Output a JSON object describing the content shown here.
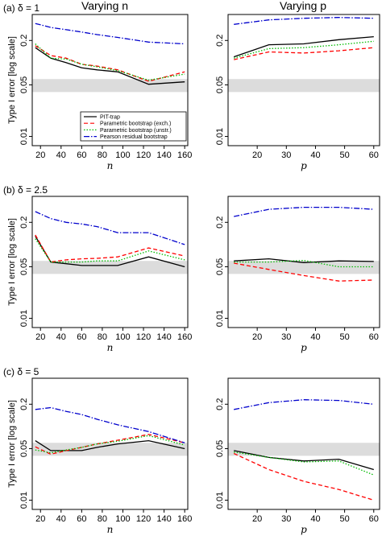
{
  "figure": {
    "col_titles": [
      "Varying n",
      "Varying p"
    ],
    "row_labels": [
      "(a)  δ = 1",
      "(b)  δ = 2.5",
      "(c)  δ = 5"
    ],
    "ylabel": "Type I error [log scale]"
  },
  "legend": [
    {
      "name": "PIT-trap",
      "color": "#000000",
      "dash": ""
    },
    {
      "name": "Parametric bootstrap (exch.)",
      "color": "#ff0000",
      "dash": "5,3"
    },
    {
      "name": "Parametric bootstrap (unstr.)",
      "color": "#00bb00",
      "dash": "1.5,2"
    },
    {
      "name": "Pearson residual bootstrap",
      "color": "#0000cc",
      "dash": "7,2,1.5,2"
    }
  ],
  "chart_data": [
    {
      "type": "line",
      "panel": "a-n",
      "xlabel": "n",
      "ylabel": "Type I error [log scale]",
      "x": [
        15,
        30,
        45,
        60,
        75,
        95,
        125,
        160
      ],
      "xticks": [
        20,
        40,
        60,
        80,
        100,
        120,
        140,
        160
      ],
      "xlim": [
        12,
        163
      ],
      "yscale": "log",
      "ylim": [
        0.0075,
        0.45
      ],
      "yticks": [
        0.01,
        0.05,
        0.2
      ],
      "band": [
        0.04,
        0.06
      ],
      "series": [
        {
          "name": "PIT-trap",
          "values": [
            0.16,
            0.115,
            0.1,
            0.085,
            0.08,
            0.075,
            0.051,
            0.055
          ]
        },
        {
          "name": "Parametric bootstrap (exch.)",
          "values": [
            0.17,
            0.125,
            0.115,
            0.095,
            0.09,
            0.08,
            0.056,
            0.075
          ]
        },
        {
          "name": "Parametric bootstrap (unstr.)",
          "values": [
            0.18,
            0.115,
            0.112,
            0.095,
            0.088,
            0.078,
            0.058,
            0.07
          ]
        },
        {
          "name": "Pearson residual bootstrap",
          "values": [
            0.34,
            0.3,
            0.28,
            0.26,
            0.24,
            0.22,
            0.19,
            0.18
          ]
        }
      ]
    },
    {
      "type": "line",
      "panel": "a-p",
      "xlabel": "p",
      "ylabel": "",
      "x": [
        12,
        24,
        36,
        48,
        60
      ],
      "xticks": [
        20,
        30,
        40,
        50,
        60
      ],
      "xlim": [
        10,
        62
      ],
      "yscale": "log",
      "ylim": [
        0.0075,
        0.45
      ],
      "yticks": [
        0.01,
        0.05,
        0.2
      ],
      "band": [
        0.04,
        0.06
      ],
      "series": [
        {
          "name": "PIT-trap",
          "values": [
            0.12,
            0.175,
            0.18,
            0.205,
            0.225
          ]
        },
        {
          "name": "Parametric bootstrap (exch.)",
          "values": [
            0.11,
            0.14,
            0.135,
            0.145,
            0.16
          ]
        },
        {
          "name": "Parametric bootstrap (unstr.)",
          "values": [
            0.115,
            0.155,
            0.16,
            0.175,
            0.195
          ]
        },
        {
          "name": "Pearson residual bootstrap",
          "values": [
            0.33,
            0.38,
            0.4,
            0.41,
            0.4
          ]
        }
      ]
    },
    {
      "type": "line",
      "panel": "b-n",
      "xlabel": "n",
      "ylabel": "Type I error [log scale]",
      "x": [
        15,
        30,
        45,
        60,
        75,
        95,
        125,
        160
      ],
      "xticks": [
        20,
        40,
        60,
        80,
        100,
        120,
        140,
        160
      ],
      "xlim": [
        12,
        163
      ],
      "yscale": "log",
      "ylim": [
        0.0075,
        0.45
      ],
      "yticks": [
        0.01,
        0.05,
        0.2
      ],
      "band": [
        0.04,
        0.06
      ],
      "series": [
        {
          "name": "PIT-trap",
          "values": [
            0.13,
            0.058,
            0.055,
            0.052,
            0.052,
            0.052,
            0.068,
            0.05
          ]
        },
        {
          "name": "Parametric bootstrap (exch.)",
          "values": [
            0.135,
            0.058,
            0.062,
            0.064,
            0.065,
            0.068,
            0.09,
            0.07
          ]
        },
        {
          "name": "Parametric bootstrap (unstr.)",
          "values": [
            0.12,
            0.058,
            0.058,
            0.058,
            0.06,
            0.06,
            0.082,
            0.062
          ]
        },
        {
          "name": "Pearson residual bootstrap",
          "values": [
            0.28,
            0.225,
            0.2,
            0.19,
            0.175,
            0.145,
            0.145,
            0.1
          ]
        }
      ]
    },
    {
      "type": "line",
      "panel": "b-p",
      "xlabel": "p",
      "ylabel": "",
      "x": [
        12,
        24,
        36,
        48,
        60
      ],
      "xticks": [
        20,
        30,
        40,
        50,
        60
      ],
      "xlim": [
        10,
        62
      ],
      "yscale": "log",
      "ylim": [
        0.0075,
        0.45
      ],
      "yticks": [
        0.01,
        0.05,
        0.2
      ],
      "band": [
        0.04,
        0.06
      ],
      "series": [
        {
          "name": "PIT-trap",
          "values": [
            0.06,
            0.064,
            0.057,
            0.06,
            0.059
          ]
        },
        {
          "name": "Parametric bootstrap (exch.)",
          "values": [
            0.056,
            0.046,
            0.038,
            0.032,
            0.033
          ]
        },
        {
          "name": "Parametric bootstrap (unstr.)",
          "values": [
            0.058,
            0.058,
            0.061,
            0.05,
            0.05
          ]
        },
        {
          "name": "Pearson residual bootstrap",
          "values": [
            0.24,
            0.3,
            0.32,
            0.32,
            0.3
          ]
        }
      ]
    },
    {
      "type": "line",
      "panel": "c-n",
      "xlabel": "n",
      "ylabel": "Type I error [log scale]",
      "x": [
        15,
        30,
        45,
        60,
        75,
        95,
        125,
        160
      ],
      "xticks": [
        20,
        40,
        60,
        80,
        100,
        120,
        140,
        160
      ],
      "xlim": [
        12,
        163
      ],
      "yscale": "log",
      "ylim": [
        0.0075,
        0.45
      ],
      "yticks": [
        0.01,
        0.05,
        0.2
      ],
      "band": [
        0.04,
        0.06
      ],
      "series": [
        {
          "name": "PIT-trap",
          "values": [
            0.064,
            0.047,
            0.047,
            0.047,
            0.052,
            0.058,
            0.064,
            0.05
          ]
        },
        {
          "name": "Parametric bootstrap (exch.)",
          "values": [
            0.053,
            0.042,
            0.047,
            0.052,
            0.058,
            0.065,
            0.078,
            0.06
          ]
        },
        {
          "name": "Parametric bootstrap (unstr.)",
          "values": [
            0.048,
            0.044,
            0.048,
            0.052,
            0.058,
            0.063,
            0.075,
            0.056
          ]
        },
        {
          "name": "Pearson residual bootstrap",
          "values": [
            0.17,
            0.18,
            0.16,
            0.145,
            0.125,
            0.105,
            0.085,
            0.06
          ]
        }
      ]
    },
    {
      "type": "line",
      "panel": "c-p",
      "xlabel": "p",
      "ylabel": "",
      "x": [
        12,
        24,
        36,
        48,
        60
      ],
      "xticks": [
        20,
        30,
        40,
        50,
        60
      ],
      "xlim": [
        10,
        62
      ],
      "yscale": "log",
      "ylim": [
        0.0075,
        0.45
      ],
      "yticks": [
        0.01,
        0.05,
        0.2
      ],
      "band": [
        0.04,
        0.06
      ],
      "series": [
        {
          "name": "PIT-trap",
          "values": [
            0.047,
            0.038,
            0.034,
            0.036,
            0.026
          ]
        },
        {
          "name": "Parametric bootstrap (exch.)",
          "values": [
            0.043,
            0.026,
            0.018,
            0.014,
            0.01
          ]
        },
        {
          "name": "Parametric bootstrap (unstr.)",
          "values": [
            0.045,
            0.038,
            0.033,
            0.034,
            0.022
          ]
        },
        {
          "name": "Pearson residual bootstrap",
          "values": [
            0.17,
            0.21,
            0.23,
            0.225,
            0.2
          ]
        }
      ]
    }
  ]
}
